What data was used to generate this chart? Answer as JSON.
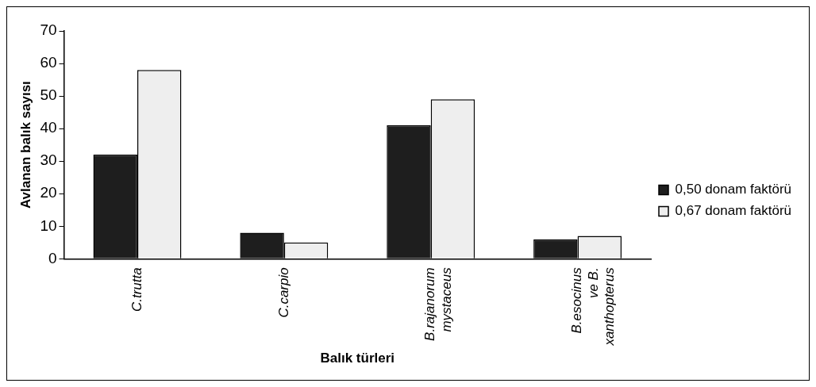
{
  "chart_data": {
    "type": "bar",
    "xlabel": "Balık türleri",
    "ylabel": "Avlanan balık sayısı",
    "categories": [
      "C.trutta",
      "C.carpio",
      "B.rajanorum mystaceus",
      "B.esocinus ve B. xanthopterus"
    ],
    "series": [
      {
        "name": "0,50 donam faktörü",
        "color": "#1e1e1e",
        "values": [
          32,
          8,
          41,
          6
        ]
      },
      {
        "name": "0,67 donam faktörü",
        "color": "#eeeeee",
        "values": [
          58,
          5,
          49,
          7
        ]
      }
    ],
    "ylim": [
      0,
      70
    ],
    "yticks": [
      0,
      10,
      20,
      30,
      40,
      50,
      60,
      70
    ],
    "grid": false,
    "legend": "right"
  }
}
